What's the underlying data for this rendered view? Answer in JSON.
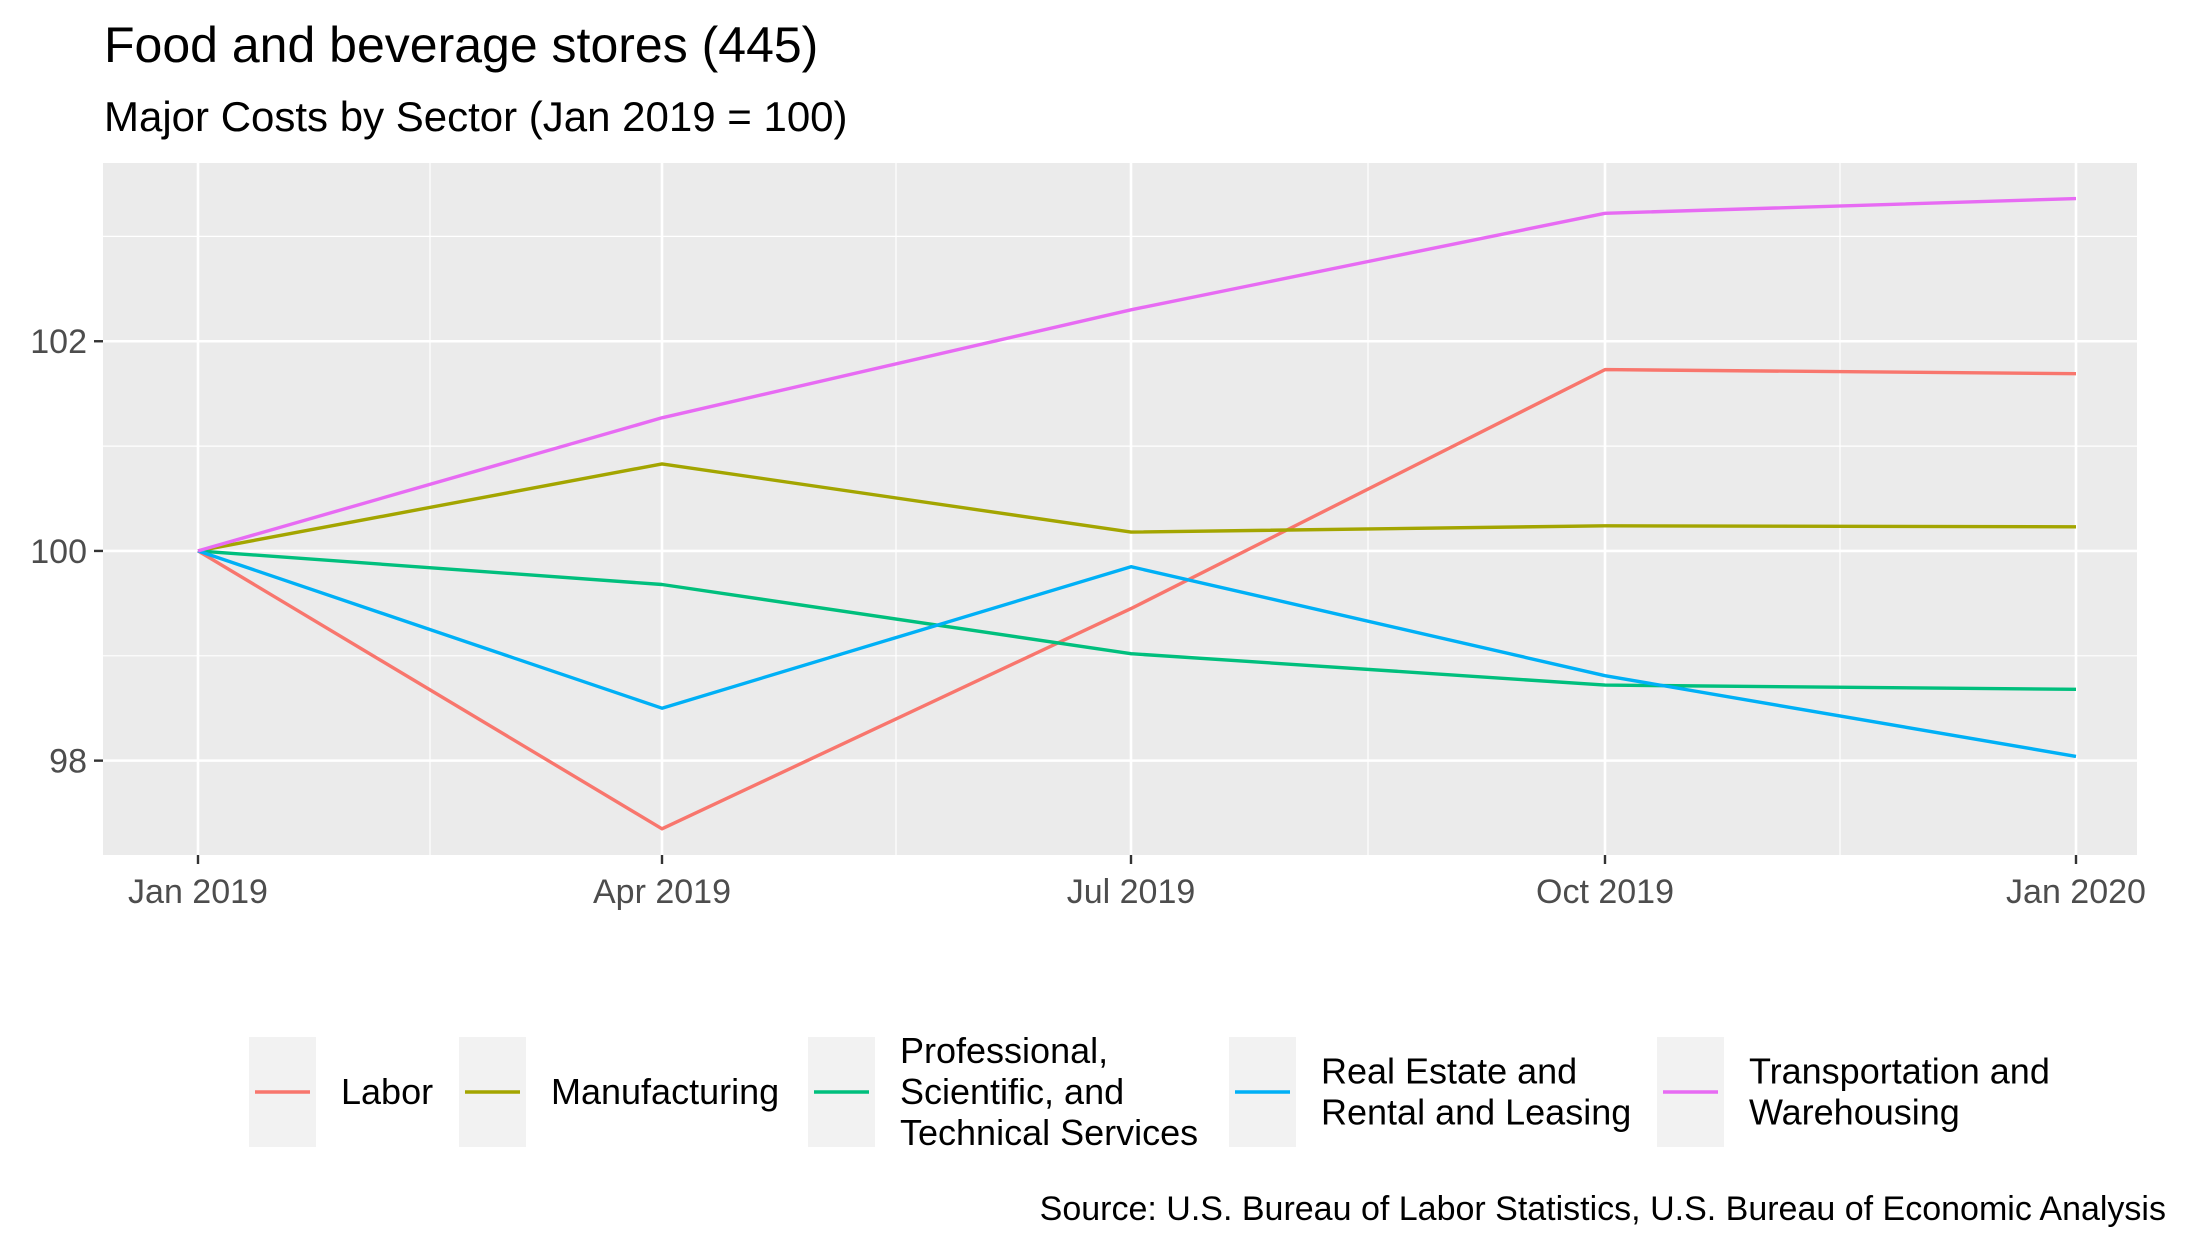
{
  "chart_data": {
    "type": "line",
    "title": "Food and beverage stores (445)",
    "subtitle": "Major Costs by Sector (Jan 2019 = 100)",
    "caption": "Source: U.S. Bureau of Labor Statistics, U.S. Bureau of Economic Analysis",
    "xlabel": "",
    "ylabel": "",
    "x": [
      "Jan 2019",
      "Apr 2019",
      "Jul 2019",
      "Oct 2019",
      "Jan 2020"
    ],
    "x_ticks": [
      "Jan 2019",
      "Apr 2019",
      "Jul 2019",
      "Oct 2019",
      "Jan 2020"
    ],
    "xlim": [
      "Dec 2018",
      "Jan 2020"
    ],
    "y_ticks": [
      "98",
      "100",
      "102"
    ],
    "ylim": [
      97.1,
      103.7
    ],
    "grid": true,
    "legend_position": "bottom",
    "series": [
      {
        "name": "Labor",
        "color": "#F8766D",
        "values": [
          100,
          97.35,
          99.45,
          101.73,
          101.69
        ]
      },
      {
        "name": "Manufacturing",
        "color": "#A3A500",
        "values": [
          100,
          100.83,
          100.18,
          100.24,
          100.23
        ]
      },
      {
        "name": "Professional, Scientific, and Technical Services",
        "legend_lines": [
          "Professional,",
          "Scientific, and",
          "Technical Services"
        ],
        "color": "#00BF7D",
        "values": [
          100,
          99.68,
          99.02,
          98.72,
          98.68
        ]
      },
      {
        "name": "Real Estate and Rental and Leasing",
        "legend_lines": [
          "Real Estate and",
          "Rental and Leasing"
        ],
        "color": "#00B0F6",
        "values": [
          100,
          98.5,
          99.85,
          98.81,
          98.04
        ]
      },
      {
        "name": "Transportation and Warehousing",
        "legend_lines": [
          "Transportation and",
          "Warehousing"
        ],
        "color": "#E76BF3",
        "values": [
          100,
          101.27,
          102.3,
          103.22,
          103.36
        ]
      }
    ]
  }
}
